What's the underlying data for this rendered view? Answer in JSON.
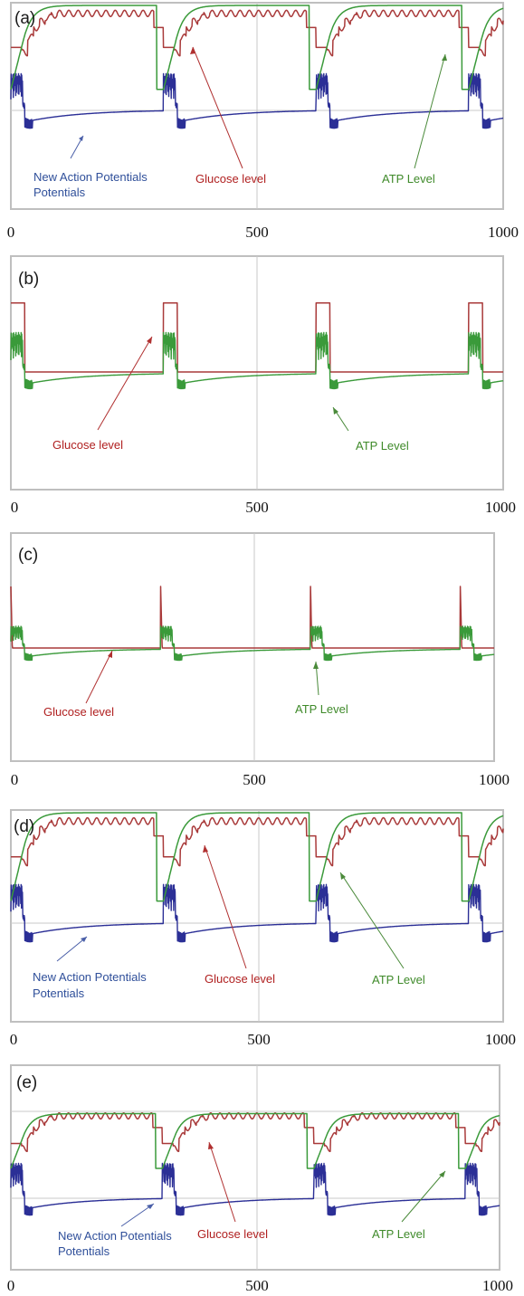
{
  "colors": {
    "glucose": "#a93a3a",
    "atp": "#3a9a3a",
    "action_potentials": "#2b2f96",
    "frame": "#bfbfbf",
    "gridline": "#c8c8c8"
  },
  "chart_data": [
    {
      "type": "line",
      "panel_label": "(a)",
      "title": "",
      "xlabel": "",
      "ylabel": "",
      "xlim": [
        0,
        1000
      ],
      "x_ticks": [
        "0",
        "500",
        "1000"
      ],
      "grid": "vertical line at x=500, horizontal baseline",
      "pulse_times": [
        0,
        310,
        620,
        930
      ],
      "series": [
        {
          "name": "New Action Potentials",
          "shape": "burst then slow recovery",
          "levels": {
            "rest": 0.05,
            "peak": 0.35
          }
        },
        {
          "name": "Glucose level",
          "shape": "staircase rise, dip at each pulse",
          "levels": {
            "low": 0.55,
            "high": 0.95
          }
        },
        {
          "name": "ATP Level",
          "shape": "saturating rise, drop at each pulse",
          "levels": {
            "low": 0.2,
            "high": 1.0
          }
        }
      ],
      "annotations": [
        "New Action Potentials",
        "Glucose level",
        "ATP Level"
      ]
    },
    {
      "type": "line",
      "panel_label": "(b)",
      "title": "",
      "xlabel": "",
      "ylabel": "",
      "xlim": [
        0,
        1000
      ],
      "x_ticks": [
        "0",
        "500",
        "1000"
      ],
      "grid": "vertical line at x=500",
      "pulse_times": [
        0,
        310,
        620,
        930
      ],
      "series": [
        {
          "name": "Glucose level",
          "shape": "square pulses",
          "levels": {
            "base": 0.0,
            "high": 0.7
          }
        },
        {
          "name": "ATP Level",
          "shape": "burst then slow recovery",
          "levels": {
            "rest": -0.1,
            "peak": 0.4
          }
        }
      ],
      "annotations": [
        "Glucose level",
        "ATP Level"
      ]
    },
    {
      "type": "line",
      "panel_label": "(c)",
      "title": "",
      "xlabel": "",
      "ylabel": "",
      "xlim": [
        0,
        1000
      ],
      "x_ticks": [
        "0",
        "500",
        "1000"
      ],
      "grid": "vertical line at x=500",
      "pulse_times": [
        0,
        310,
        620,
        930
      ],
      "series": [
        {
          "name": "Glucose level",
          "shape": "narrow spikes",
          "levels": {
            "base": 0.0,
            "high": 0.85
          }
        },
        {
          "name": "ATP Level",
          "shape": "burst then slow recovery",
          "levels": {
            "rest": -0.1,
            "peak": 0.3
          }
        }
      ],
      "annotations": [
        "Glucose level",
        "ATP Level"
      ]
    },
    {
      "type": "line",
      "panel_label": "(d)",
      "title": "",
      "xlabel": "",
      "ylabel": "",
      "xlim": [
        0,
        1000
      ],
      "x_ticks": [
        "0",
        "500",
        "1000"
      ],
      "grid": "vertical line at x=500, horizontal baseline",
      "pulse_times": [
        0,
        310,
        620,
        930
      ],
      "series": [
        {
          "name": "New Action Potentials",
          "shape": "burst then slow recovery",
          "levels": {
            "rest": 0.05,
            "peak": 0.35
          }
        },
        {
          "name": "Glucose level",
          "shape": "staircase rise, dip at each pulse",
          "levels": {
            "low": 0.55,
            "high": 0.95
          }
        },
        {
          "name": "ATP Level",
          "shape": "saturating rise, drop at each pulse",
          "levels": {
            "low": 0.2,
            "high": 1.0
          }
        }
      ],
      "annotations": [
        "New Action Potentials",
        "Glucose level",
        "ATP Level"
      ]
    },
    {
      "type": "line",
      "panel_label": "(e)",
      "title": "",
      "xlabel": "",
      "ylabel": "",
      "xlim": [
        0,
        1000
      ],
      "x_ticks": [
        "0",
        "500",
        "1000"
      ],
      "grid": "vertical line at x=500, two horizontal gridlines",
      "pulse_times": [
        0,
        310,
        620,
        930
      ],
      "series": [
        {
          "name": "New Action Potentials",
          "shape": "burst then slow recovery",
          "levels": {
            "rest": 0.05,
            "peak": 0.35
          }
        },
        {
          "name": "Glucose level",
          "shape": "staircase rise, dip at each pulse",
          "levels": {
            "low": 0.5,
            "high": 0.85
          }
        },
        {
          "name": "ATP Level",
          "shape": "plateau below top, drop at each pulse",
          "levels": {
            "low": 0.3,
            "high": 0.85
          }
        }
      ],
      "annotations": [
        "New Action Potentials",
        "Glucose level",
        "ATP Level"
      ]
    }
  ]
}
